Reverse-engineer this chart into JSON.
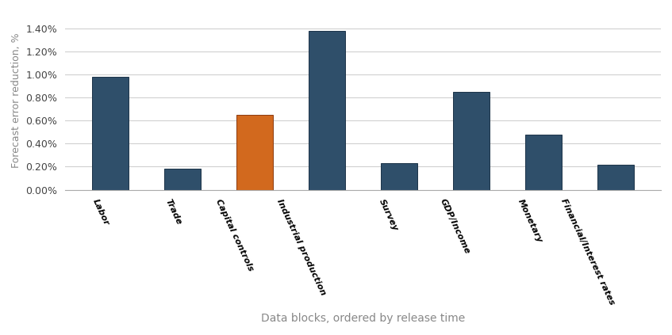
{
  "categories": [
    "Labor",
    "Trade",
    "Capital controls",
    "Industrial production",
    "Survey",
    "GDP/Income",
    "Monetary",
    "Financial/Interest rates"
  ],
  "values": [
    0.0098,
    0.0018,
    0.0065,
    0.0138,
    0.0023,
    0.0085,
    0.0048,
    0.0022
  ],
  "ylabel": "Forecast error reduction, %",
  "xlabel": "Data blocks, ordered by release time",
  "ylim": [
    0,
    0.0155
  ],
  "yticks": [
    0.0,
    0.002,
    0.004,
    0.006,
    0.008,
    0.01,
    0.012,
    0.014
  ],
  "ytick_labels": [
    "0.00%",
    "0.20%",
    "0.40%",
    "0.60%",
    "0.80%",
    "1.00%",
    "1.20%",
    "1.40%"
  ],
  "background_color": "#FFFFFF",
  "grid_color": "#D0D0D0",
  "bar_dark_color": "#2F4F6A",
  "bar_orange_color": "#D2691E",
  "bar_edge_dark": "#1C3348",
  "bar_edge_orange": "#8B3A0F",
  "orange_index": 2,
  "bar_width": 0.5,
  "xlabel_fontsize": 10,
  "ylabel_fontsize": 9,
  "xtick_fontsize": 8,
  "ytick_fontsize": 9,
  "xlabel_color": "#888888",
  "ylabel_color": "#888888",
  "xtick_rotation": -65
}
